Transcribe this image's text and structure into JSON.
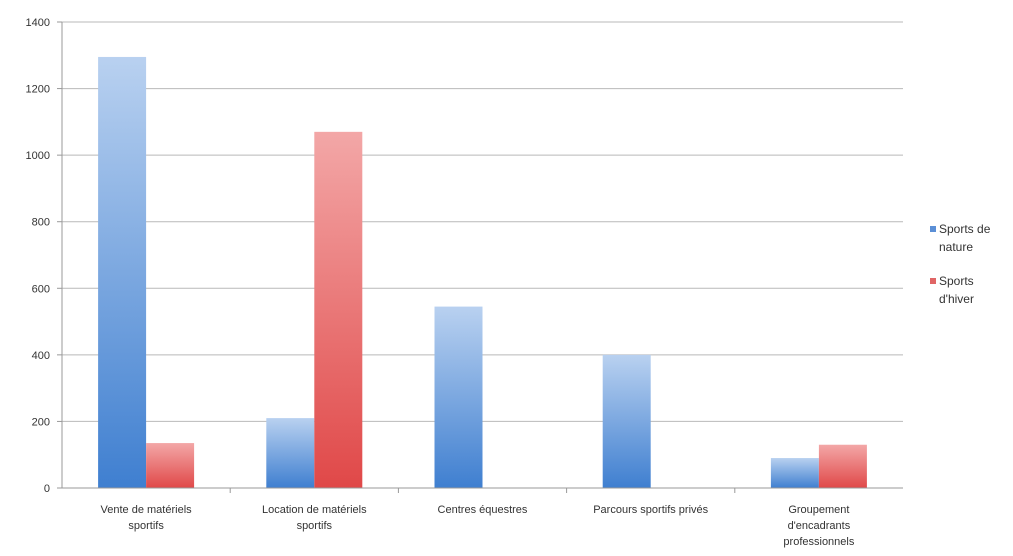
{
  "chart_data": {
    "type": "bar",
    "categories": [
      [
        "Vente de matériels",
        "sportifs"
      ],
      [
        "Location de matériels",
        "sportifs"
      ],
      [
        "Centres équestres"
      ],
      [
        "Parcours sportifs privés"
      ],
      [
        "Groupement",
        "d'encadrants",
        "professionnels"
      ]
    ],
    "series": [
      {
        "name": "Sports de nature",
        "color": "#5b8fd6",
        "values": [
          1295,
          210,
          545,
          400,
          90
        ]
      },
      {
        "name": "Sports d'hiver",
        "color": "#e06565",
        "values": [
          135,
          1070,
          0,
          0,
          130
        ]
      }
    ],
    "ylim": [
      0,
      1400
    ],
    "yticks": [
      "0",
      "200",
      "400",
      "600",
      "800",
      "1000",
      "1200",
      "1400"
    ],
    "grid": true,
    "legend_position": "right"
  },
  "legend": {
    "items": [
      {
        "lines": [
          "Sports de",
          "nature"
        ],
        "color": "#5b8fd6"
      },
      {
        "lines": [
          "Sports",
          "d'hiver"
        ],
        "color": "#e06565"
      }
    ]
  }
}
